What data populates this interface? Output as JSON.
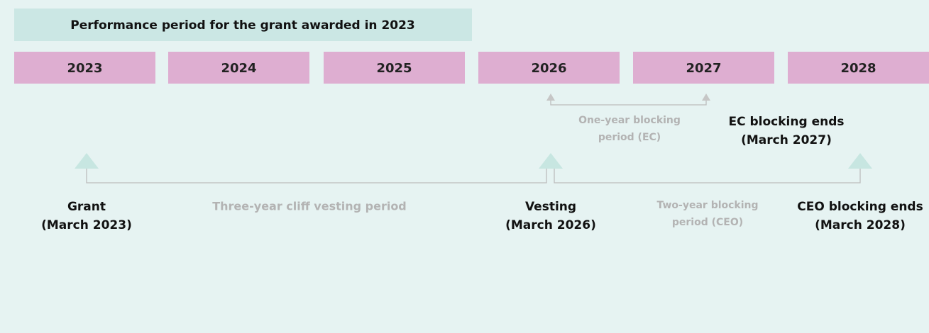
{
  "header": {
    "title": "Performance period for the grant awarded in 2023"
  },
  "years": [
    "2023",
    "2024",
    "2025",
    "2026",
    "2027",
    "2028"
  ],
  "milestones": [
    {
      "lines": [
        "Grant",
        "(March 2023)"
      ]
    },
    {
      "lines": [
        "Vesting",
        "(March 2026)"
      ]
    },
    {
      "lines": [
        "CEO blocking ends",
        "(March 2028)"
      ]
    },
    {
      "lines": [
        "EC blocking ends",
        "(March 2027)"
      ]
    }
  ],
  "periods": [
    {
      "lines": [
        "Three-year cliff vesting period"
      ]
    },
    {
      "lines": [
        "Two-year blocking",
        "period (CEO)"
      ]
    },
    {
      "lines": [
        "One-year blocking",
        "period (EC)"
      ]
    }
  ]
}
